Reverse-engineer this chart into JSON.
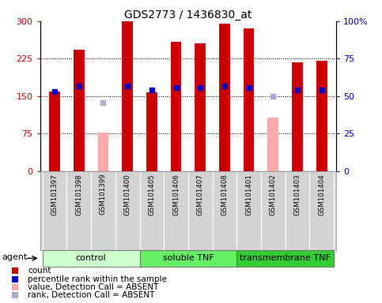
{
  "title": "GDS2773 / 1436830_at",
  "samples": [
    "GSM101397",
    "GSM101398",
    "GSM101399",
    "GSM101400",
    "GSM101405",
    "GSM101406",
    "GSM101407",
    "GSM101408",
    "GSM101401",
    "GSM101402",
    "GSM101403",
    "GSM101404"
  ],
  "groups": [
    {
      "label": "control",
      "color": "#ccffcc",
      "start": 0,
      "end": 4
    },
    {
      "label": "soluble TNF",
      "color": "#66ee66",
      "start": 4,
      "end": 8
    },
    {
      "label": "transmembrane TNF",
      "color": "#33cc33",
      "start": 8,
      "end": 12
    }
  ],
  "count_values": [
    160,
    243,
    null,
    300,
    157,
    258,
    255,
    295,
    286,
    null,
    218,
    221
  ],
  "absent_values": [
    null,
    null,
    78,
    null,
    null,
    null,
    null,
    null,
    null,
    108,
    null,
    null
  ],
  "percentile_values": [
    53,
    57,
    null,
    57,
    54,
    56,
    56,
    57,
    56,
    null,
    54,
    54
  ],
  "absent_rank_values": [
    null,
    null,
    46,
    null,
    null,
    null,
    null,
    null,
    null,
    50,
    null,
    null
  ],
  "ylim_left": [
    0,
    300
  ],
  "ylim_right": [
    0,
    100
  ],
  "yticks_left": [
    0,
    75,
    150,
    225,
    300
  ],
  "yticks_right": [
    0,
    25,
    50,
    75,
    100
  ],
  "ytick_labels_left": [
    "0",
    "75",
    "150",
    "225",
    "300"
  ],
  "ytick_labels_right": [
    "0",
    "25",
    "50",
    "75",
    "100%"
  ],
  "bar_width": 0.45,
  "bar_color": "#cc0000",
  "absent_bar_color": "#ffaaaa",
  "blue_color": "#0000cc",
  "absent_rank_color": "#aaaacc",
  "legend_items": [
    {
      "color": "#cc0000",
      "label": "count"
    },
    {
      "color": "#0000cc",
      "label": "percentile rank within the sample"
    },
    {
      "color": "#ffaaaa",
      "label": "value, Detection Call = ABSENT"
    },
    {
      "color": "#aaaacc",
      "label": "rank, Detection Call = ABSENT"
    }
  ]
}
